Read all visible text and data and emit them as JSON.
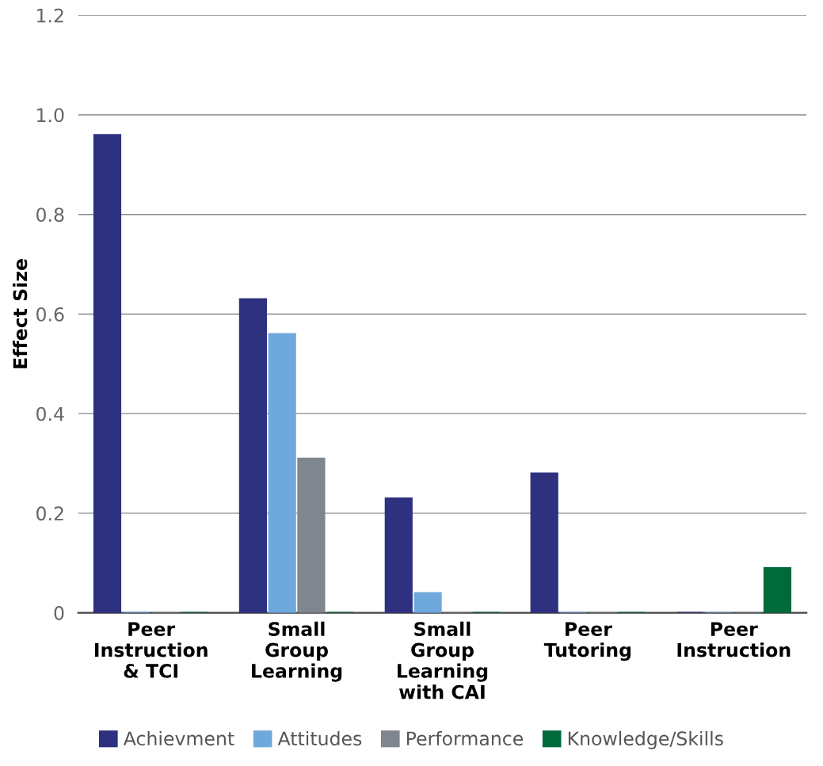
{
  "chart_data": {
    "type": "bar",
    "ylabel": "Effect Size",
    "categories": [
      "Peer\nInstruction\n& TCI",
      "Small\nGroup\nLearning",
      "Small\nGroup\nLearning\nwith CAI",
      "Peer\nTutoring",
      "Peer\nInstruction"
    ],
    "series": [
      {
        "name": "Achievment",
        "color": "#2e3180",
        "values": [
          0.96,
          0.63,
          0.23,
          0.28,
          0
        ]
      },
      {
        "name": "Attitudes",
        "color": "#6fa8dc",
        "values": [
          0,
          0.56,
          0.04,
          0,
          0
        ]
      },
      {
        "name": "Performance",
        "color": "#7f868d",
        "values": [
          0,
          0.31,
          0,
          0,
          0
        ]
      },
      {
        "name": "Knowledge/Skills",
        "color": "#006a3a",
        "values": [
          0,
          0,
          0,
          0,
          0.09
        ]
      }
    ],
    "ylim": [
      0,
      1.2
    ],
    "yticks": [
      {
        "value": 0,
        "label": "0"
      },
      0.2,
      0.4,
      0.6,
      0.8,
      {
        "value": 1.0,
        "label": "1.0"
      },
      {
        "value": 1.2,
        "label": "1.2"
      }
    ],
    "grid": "y",
    "legend": "bottom"
  }
}
